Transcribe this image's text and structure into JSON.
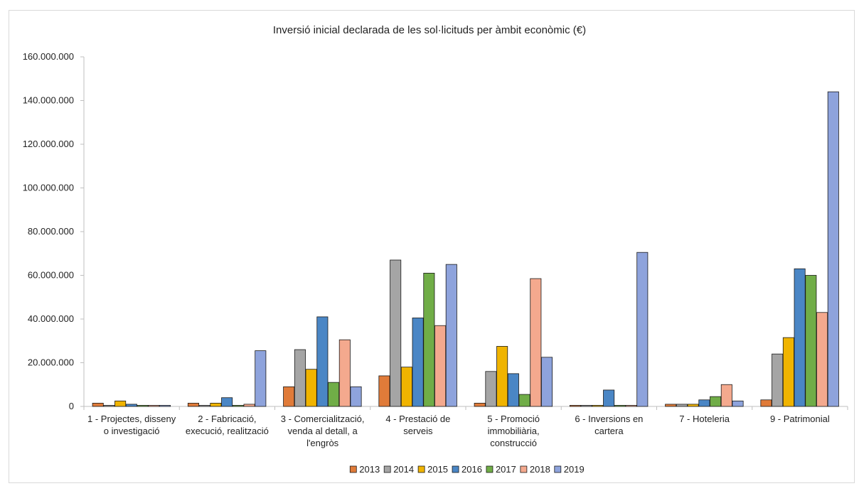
{
  "chart_data": {
    "type": "bar",
    "title": "Inversió inicial declarada de les sol·licituds per àmbit econòmic (€)",
    "xlabel": "",
    "ylabel": "",
    "ylim": [
      0,
      160000000
    ],
    "ytick_step": 20000000,
    "ytick_labels": [
      "0",
      "20.000.000",
      "40.000.000",
      "60.000.000",
      "80.000.000",
      "100.000.000",
      "120.000.000",
      "140.000.000",
      "160.000.000"
    ],
    "grid": false,
    "legend_position": "bottom",
    "categories": [
      [
        "1 - Projectes, disseny",
        "o investigació"
      ],
      [
        "2 - Fabricació,",
        "execució, realització"
      ],
      [
        "3 - Comercialització,",
        "venda al detall, a",
        "l'engròs"
      ],
      [
        "4 - Prestació de",
        "serveis"
      ],
      [
        "5 - Promoció",
        "immobiliària,",
        "construcció"
      ],
      [
        "6 - Inversions en",
        "cartera"
      ],
      [
        "7 - Hoteleria"
      ],
      [
        "9 - Patrimonial"
      ]
    ],
    "series": [
      {
        "name": "2013",
        "color": "#e07b39",
        "values": [
          1500000,
          1500000,
          9000000,
          14000000,
          1500000,
          500000,
          1000000,
          3000000
        ]
      },
      {
        "name": "2014",
        "color": "#a5a5a5",
        "values": [
          500000,
          500000,
          26000000,
          67000000,
          16000000,
          500000,
          1000000,
          24000000
        ]
      },
      {
        "name": "2015",
        "color": "#f0b400",
        "values": [
          2500000,
          1500000,
          17000000,
          18000000,
          27500000,
          500000,
          1000000,
          31500000
        ]
      },
      {
        "name": "2016",
        "color": "#4a86c5",
        "values": [
          1000000,
          4000000,
          41000000,
          40500000,
          15000000,
          7500000,
          3000000,
          63000000
        ]
      },
      {
        "name": "2017",
        "color": "#70ad47",
        "values": [
          500000,
          500000,
          11000000,
          61000000,
          5500000,
          500000,
          4500000,
          60000000
        ]
      },
      {
        "name": "2018",
        "color": "#f4a98e",
        "values": [
          500000,
          1000000,
          30500000,
          37000000,
          58500000,
          500000,
          10000000,
          43000000
        ]
      },
      {
        "name": "2019",
        "color": "#8ea3dc",
        "values": [
          500000,
          25500000,
          9000000,
          65000000,
          22500000,
          70500000,
          2500000,
          144000000
        ]
      }
    ]
  }
}
